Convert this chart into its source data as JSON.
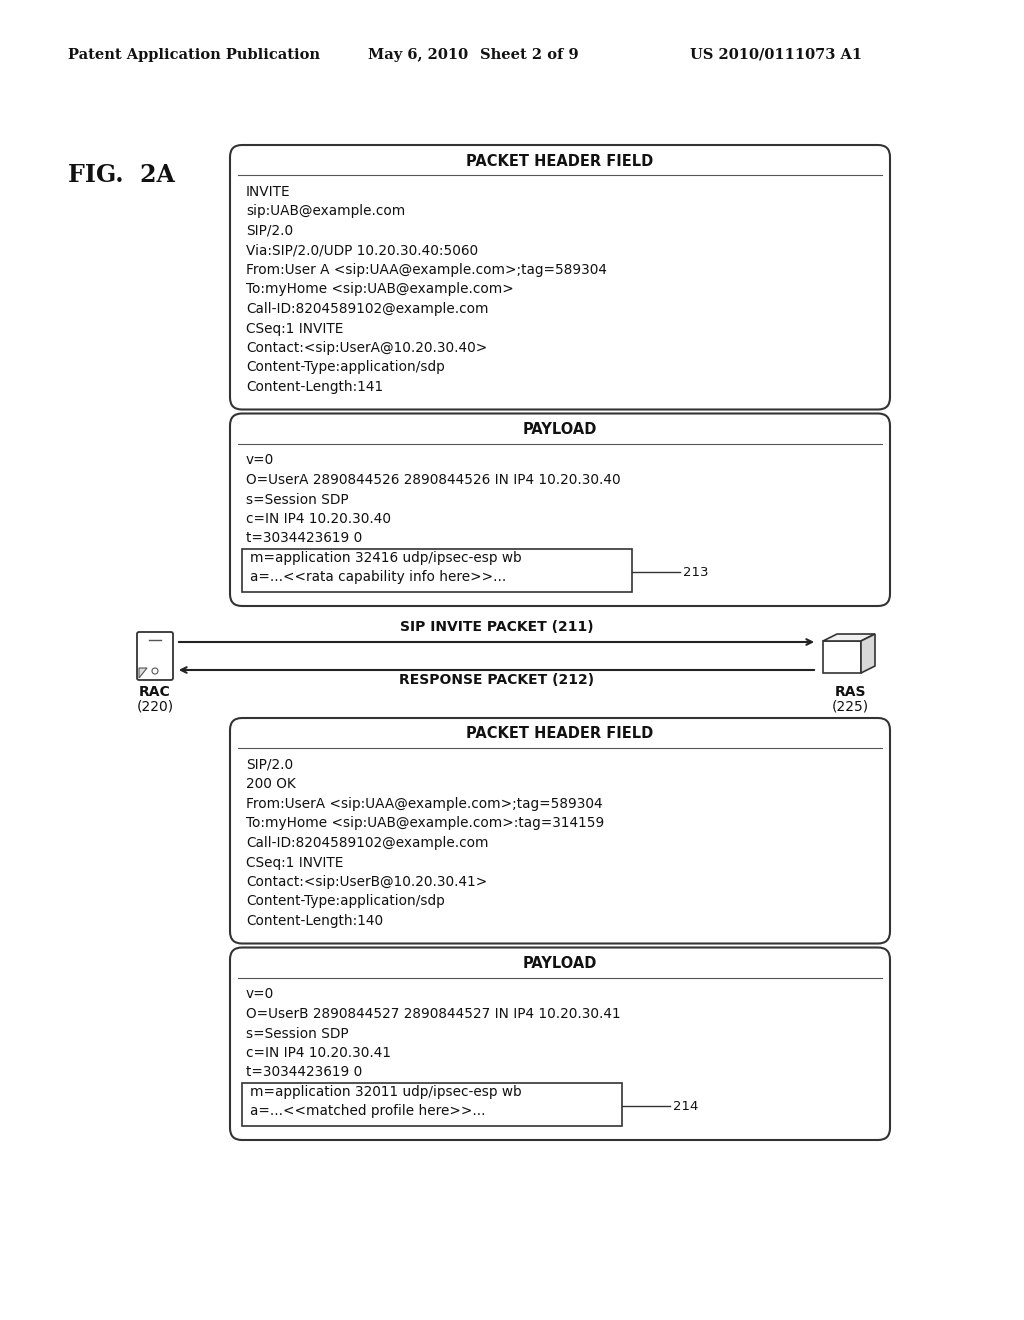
{
  "header_text": "Patent Application Publication",
  "date_text": "May 6, 2010",
  "sheet_text": "Sheet 2 of 9",
  "patent_text": "US 2010/0111073 A1",
  "fig_label": "FIG.  2A",
  "box1_title": "PACKET HEADER FIELD",
  "box1_lines": [
    "INVITE",
    "sip:UAB@example.com",
    "SIP/2.0",
    "Via:SIP/2.0/UDP 10.20.30.40:5060",
    "From:User A <sip:UAA@example.com>;tag=589304",
    "To:myHome <sip:UAB@example.com>",
    "Call-ID:8204589102@example.com",
    "CSeq:1 INVITE",
    "Contact:<sip:UserA@10.20.30.40>",
    "Content-Type:application/sdp",
    "Content-Length:141"
  ],
  "box2_title": "PAYLOAD",
  "box2_lines": [
    "v=0",
    "O=UserA 2890844526 2890844526 IN IP4 10.20.30.40",
    "s=Session SDP",
    "c=IN IP4 10.20.30.40",
    "t=3034423619 0"
  ],
  "box2_highlight_lines": [
    "m=application 32416 udp/ipsec-esp wb",
    "a=...<<rata capability info here>>..."
  ],
  "label_213": "213",
  "arrow1_label": "SIP INVITE PACKET (211)",
  "arrow2_label": "RESPONSE PACKET (212)",
  "rac_label": "RAC",
  "rac_num": "(220)",
  "ras_label": "RAS",
  "ras_num": "(225)",
  "box3_title": "PACKET HEADER FIELD",
  "box3_lines": [
    "SIP/2.0",
    "200 OK",
    "From:UserA <sip:UAA@example.com>;tag=589304",
    "To:myHome <sip:UAB@example.com>:tag=314159",
    "Call-ID:8204589102@example.com",
    "CSeq:1 INVITE",
    "Contact:<sip:UserB@10.20.30.41>",
    "Content-Type:application/sdp",
    "Content-Length:140"
  ],
  "box4_title": "PAYLOAD",
  "box4_lines": [
    "v=0",
    "O=UserB 2890844527 2890844527 IN IP4 10.20.30.41",
    "s=Session SDP",
    "c=IN IP4 10.20.30.41",
    "t=3034423619 0"
  ],
  "box4_highlight_lines": [
    "m=application 32011 udp/ipsec-esp wb",
    "a=...<<matched profile here>>..."
  ],
  "label_214": "214",
  "bg_color": "#ffffff",
  "text_color": "#1a1a1a",
  "box_edge_color": "#333333"
}
